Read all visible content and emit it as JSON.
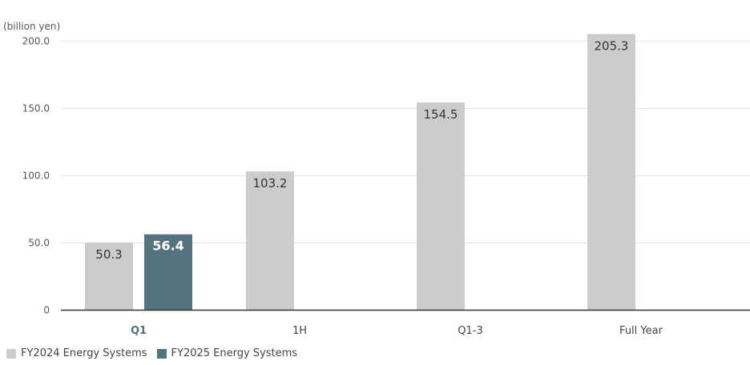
{
  "chart_data": {
    "type": "bar",
    "unit_label": "(billion yen)",
    "categories": [
      "Q1",
      "1H",
      "Q1-3",
      "Full Year"
    ],
    "highlight_category": "Q1",
    "y_ticks": [
      "0",
      "50.0",
      "100.0",
      "150.0",
      "200.0"
    ],
    "ylim": [
      0,
      210
    ],
    "grid": true,
    "legend_position": "bottom-left",
    "series": [
      {
        "name": "FY2024 Energy Systems",
        "color": "#cccccc",
        "values": [
          50.3,
          103.2,
          154.5,
          205.3
        ],
        "labels": [
          "50.3",
          "103.2",
          "154.5",
          "205.3"
        ]
      },
      {
        "name": "FY2025 Energy Systems",
        "color": "#55737e",
        "values": [
          56.4,
          null,
          null,
          null
        ],
        "labels": [
          "56.4",
          null,
          null,
          null
        ]
      }
    ]
  }
}
